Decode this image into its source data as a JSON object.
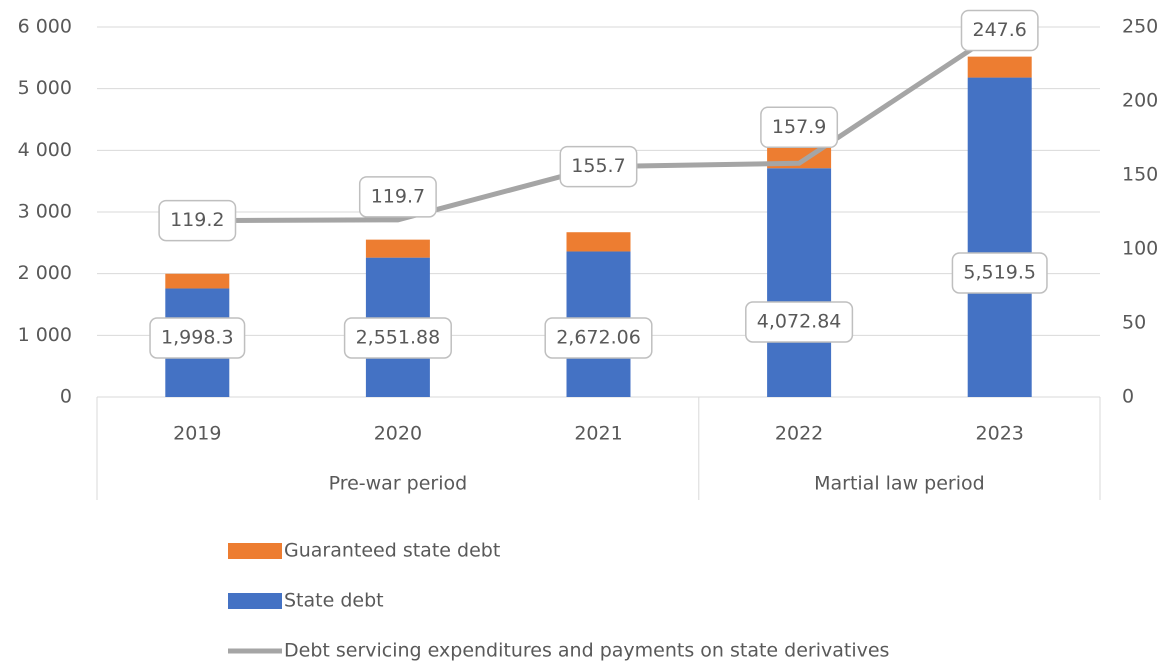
{
  "chart_data": {
    "type": "bar",
    "categories": [
      "2019",
      "2020",
      "2021",
      "2022",
      "2023"
    ],
    "groups": [
      {
        "name": "Pre-war period",
        "categories": [
          "2019",
          "2020",
          "2021"
        ]
      },
      {
        "name": "Martial law period",
        "categories": [
          "2022",
          "2023"
        ]
      }
    ],
    "series": [
      {
        "name": "Guaranteed state debt",
        "color": "#ed7d31",
        "type": "bar",
        "values": [
          238.3,
          291.88,
          312.06,
          362.84,
          339.5
        ]
      },
      {
        "name": "State debt",
        "color": "#4472c4",
        "type": "bar",
        "values": [
          1760,
          2260,
          2360,
          3710,
          5180
        ]
      },
      {
        "name": "Debt servicing expenditures and payments on state derivatives",
        "color": "#a5a5a5",
        "type": "line",
        "axis": "y2",
        "values": [
          119.2,
          119.7,
          155.7,
          157.9,
          247.6
        ]
      }
    ],
    "total_labels": [
      "1,998.3",
      "2,551.88",
      "2,672.06",
      "4,072.84",
      "5,519.5"
    ],
    "ylim": [
      0,
      6000
    ],
    "yticks": [
      0,
      {
        "value": 1000,
        "label": "1 000"
      },
      {
        "value": 2000,
        "label": "2 000"
      },
      {
        "value": 3000,
        "label": "3 000"
      },
      {
        "value": 4000,
        "label": "4 000"
      },
      {
        "value": 5000,
        "label": "5 000"
      },
      {
        "value": 6000,
        "label": "6 000"
      }
    ],
    "y2lim": [
      0,
      250
    ],
    "y2ticks": [
      0,
      50,
      100,
      150,
      200,
      250
    ],
    "grid": true,
    "legend": "bottom"
  }
}
